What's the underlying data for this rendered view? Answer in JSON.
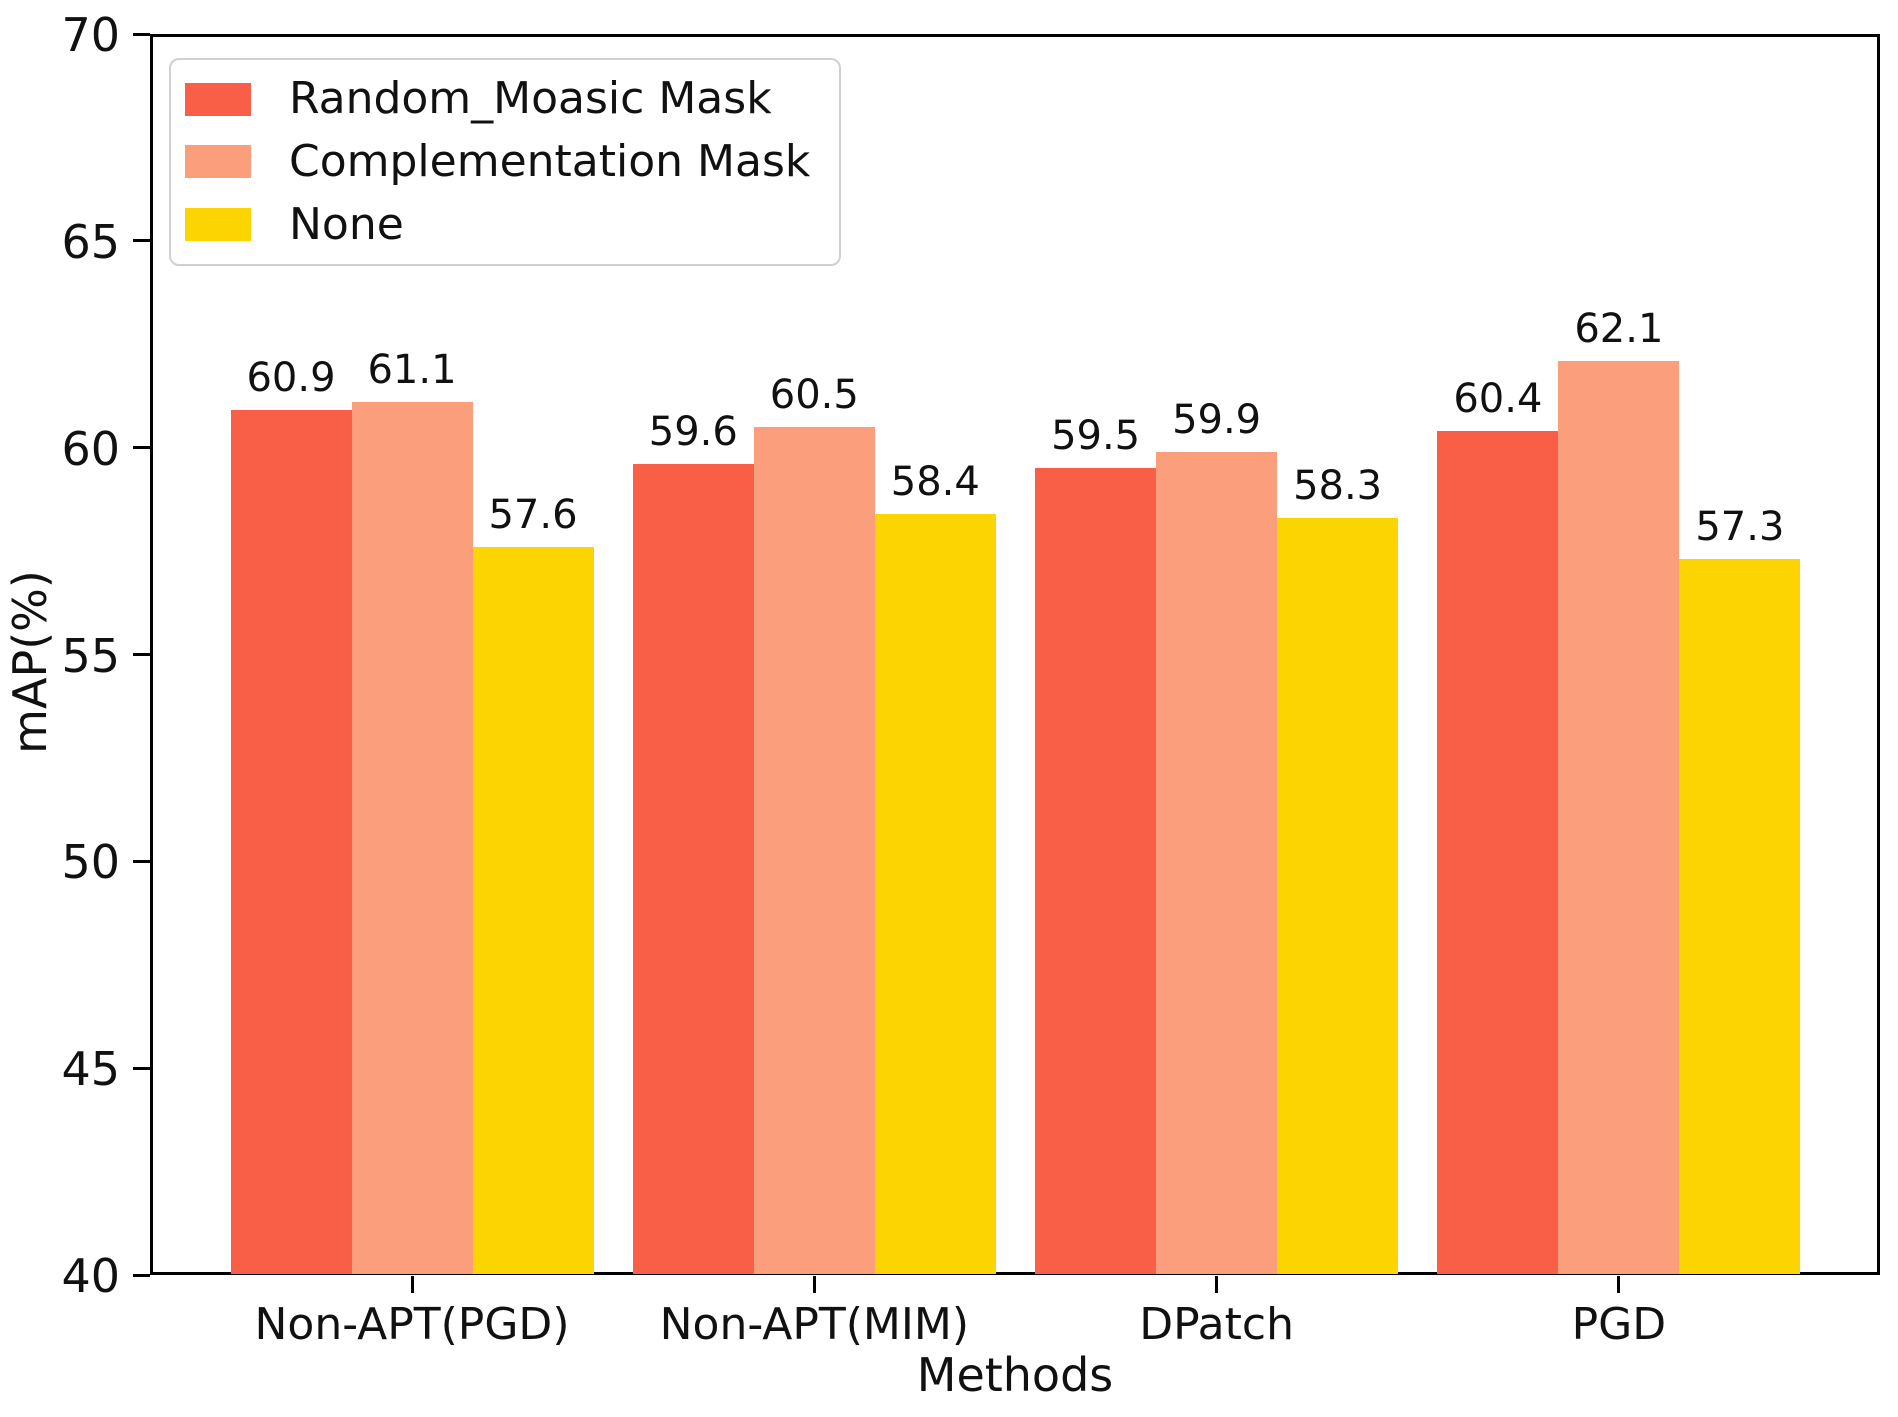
{
  "chart_data": {
    "type": "bar",
    "title": "",
    "categories": [
      "Non-APT(PGD)",
      "Non-APT(MIM)",
      "DPatch",
      "PGD"
    ],
    "series": [
      {
        "name": "Random_Moasic Mask",
        "color": "#f95f46",
        "values": [
          60.9,
          59.6,
          59.5,
          60.4
        ]
      },
      {
        "name": "Complementation Mask",
        "color": "#fb9e7c",
        "values": [
          61.1,
          60.5,
          59.9,
          62.1
        ]
      },
      {
        "name": "None",
        "color": "#fbd402",
        "values": [
          57.6,
          58.4,
          58.3,
          57.3
        ]
      }
    ],
    "xlabel": "Methods",
    "ylabel": "mAP(%)",
    "ylim": [
      40,
      70
    ],
    "yticks": [
      40,
      45,
      50,
      55,
      60,
      65,
      70
    ],
    "bar_value_labels": true,
    "legend_position": "upper left",
    "grid": false,
    "axis_color": "#000000",
    "text_color": "#111111",
    "background_color": "#ffffff"
  }
}
